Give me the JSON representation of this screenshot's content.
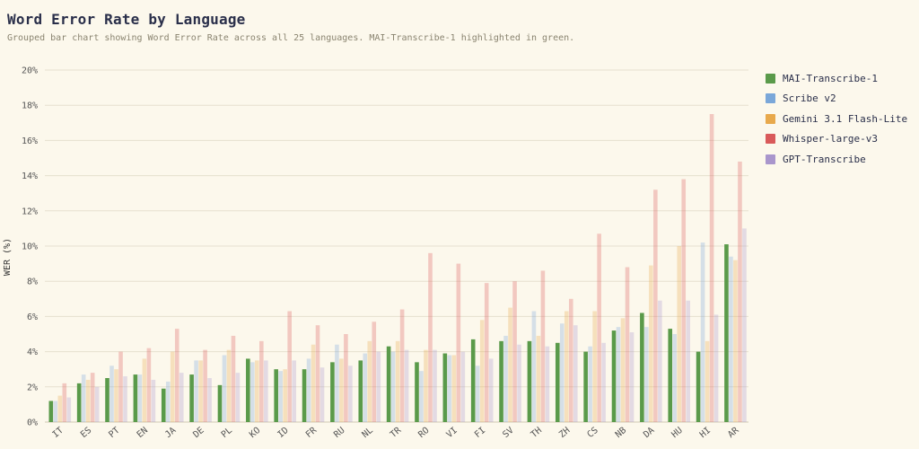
{
  "header": {
    "title": "Word Error Rate by Language",
    "subtitle": "Grouped bar chart showing Word Error Rate across all 25 languages. MAI-Transcribe-1 highlighted in green."
  },
  "chart_data": {
    "type": "bar",
    "ylabel": "WER (%)",
    "ylim": [
      0,
      20
    ],
    "yticks": [
      "0%",
      "2%",
      "4%",
      "6%",
      "8%",
      "10%",
      "12%",
      "14%",
      "16%",
      "18%",
      "20%"
    ],
    "grid": true,
    "legend_position": "right",
    "categories": [
      "IT",
      "ES",
      "PT",
      "EN",
      "JA",
      "DE",
      "PL",
      "KO",
      "ID",
      "FR",
      "RU",
      "NL",
      "TR",
      "RO",
      "VI",
      "FI",
      "SV",
      "TH",
      "ZH",
      "CS",
      "NB",
      "DA",
      "HU",
      "HI",
      "AR"
    ],
    "series": [
      {
        "name": "MAI-Transcribe-1",
        "color": "#5a9a4a",
        "highlight": true,
        "values": [
          1.2,
          2.2,
          2.5,
          2.7,
          1.9,
          2.7,
          2.1,
          3.6,
          3.0,
          3.0,
          3.4,
          3.5,
          4.3,
          3.4,
          3.9,
          4.7,
          4.6,
          4.6,
          4.5,
          4.0,
          5.2,
          6.2,
          5.3,
          4.0,
          10.1
        ]
      },
      {
        "name": "Scribe v2",
        "color": "#7aa7d9",
        "values": [
          1.2,
          2.7,
          3.2,
          2.7,
          2.3,
          3.5,
          3.8,
          3.4,
          2.9,
          3.6,
          4.4,
          3.9,
          4.0,
          2.9,
          3.8,
          3.2,
          4.9,
          6.3,
          5.6,
          4.3,
          5.4,
          5.4,
          5.0,
          10.2,
          9.4
        ]
      },
      {
        "name": "Gemini 3.1 Flash-Lite",
        "color": "#e8a94c",
        "values": [
          1.5,
          2.4,
          3.0,
          3.6,
          4.0,
          3.5,
          4.1,
          3.5,
          3.0,
          4.4,
          3.6,
          4.6,
          4.6,
          4.1,
          3.8,
          5.8,
          6.5,
          4.9,
          6.3,
          6.3,
          5.9,
          8.9,
          10.0,
          4.6,
          9.2
        ]
      },
      {
        "name": "Whisper-large-v3",
        "color": "#d95a5a",
        "values": [
          2.2,
          2.8,
          4.0,
          4.2,
          5.3,
          4.1,
          4.9,
          4.6,
          6.3,
          5.5,
          5.0,
          5.7,
          6.4,
          9.6,
          9.0,
          7.9,
          8.0,
          8.6,
          7.0,
          10.7,
          8.8,
          13.2,
          13.8,
          17.5,
          14.8
        ]
      },
      {
        "name": "GPT-Transcribe",
        "color": "#a996cc",
        "values": [
          1.4,
          2.0,
          2.6,
          2.4,
          2.8,
          2.5,
          2.8,
          3.5,
          3.5,
          3.1,
          3.2,
          4.0,
          4.1,
          4.1,
          4.0,
          3.6,
          4.4,
          4.3,
          5.5,
          4.5,
          5.1,
          6.9,
          6.9,
          6.1,
          11.0
        ]
      }
    ]
  }
}
